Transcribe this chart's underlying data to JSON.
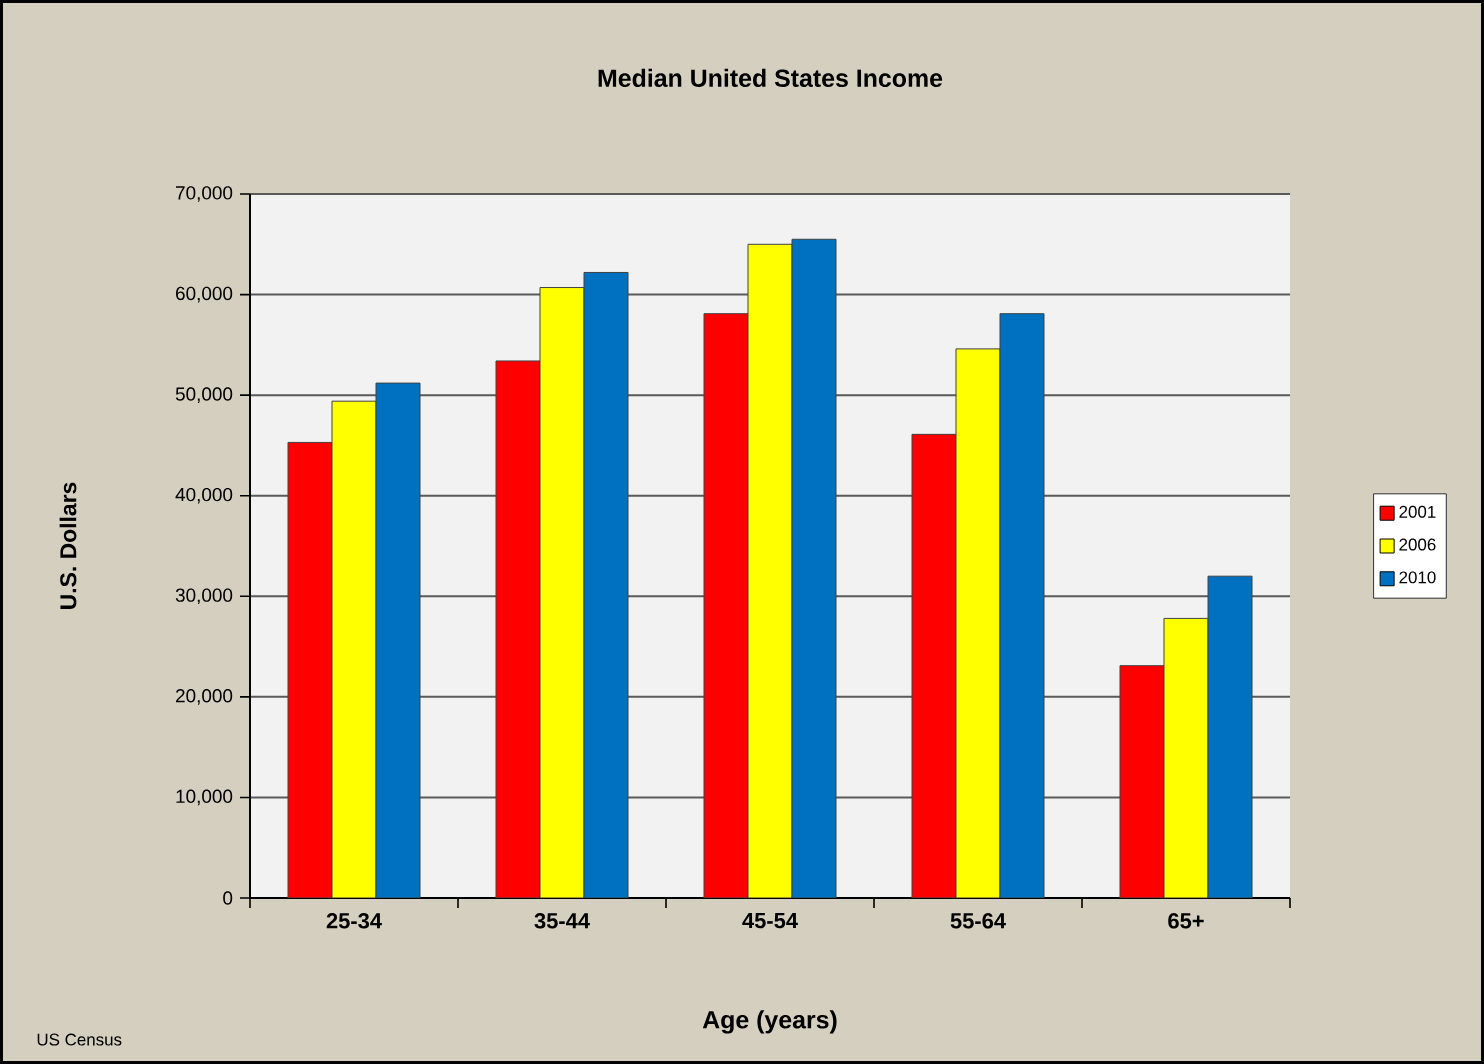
{
  "chart_data": {
    "type": "bar",
    "title": "Median United States Income",
    "xlabel": "Age (years)",
    "ylabel": "U.S. Dollars",
    "categories": [
      "25-34",
      "35-44",
      "45-54",
      "55-64",
      "65+"
    ],
    "series": [
      {
        "name": "2001",
        "color": "#ff0000",
        "values": [
          45300,
          53400,
          58100,
          46100,
          23100
        ]
      },
      {
        "name": "2006",
        "color": "#ffff00",
        "values": [
          49400,
          60700,
          65000,
          54600,
          27800
        ]
      },
      {
        "name": "2010",
        "color": "#0070c0",
        "values": [
          51200,
          62200,
          65500,
          58100,
          32000
        ]
      }
    ],
    "ylim": [
      0,
      70000
    ],
    "yticks": [
      0,
      {
        "value": 10000,
        "label": "10,000"
      },
      {
        "value": 20000,
        "label": "20,000"
      },
      {
        "value": 30000,
        "label": "30,000"
      },
      {
        "value": 40000,
        "label": "40,000"
      },
      {
        "value": 50000,
        "label": "50,000"
      },
      {
        "value": 60000,
        "label": "60,000"
      },
      {
        "value": 70000,
        "label": "70,000"
      }
    ],
    "grid": "y",
    "legend": "right",
    "annotations": [
      "US Census"
    ]
  }
}
